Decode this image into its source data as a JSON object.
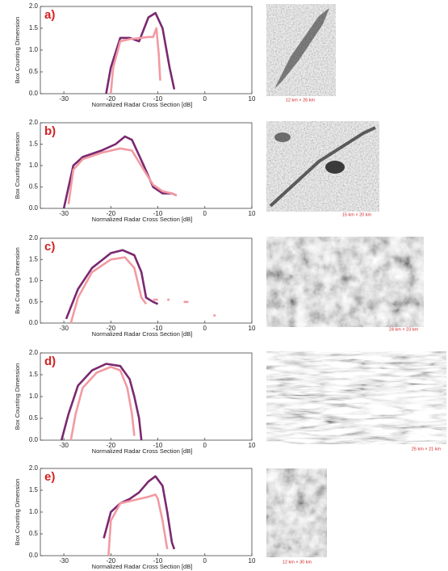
{
  "chart_data": [
    {
      "type": "line",
      "panel_label": "a)",
      "xlabel": "Normalized Radar Cross Section [dB]",
      "ylabel": "Box Counting Dimension",
      "image_caption": "12 km × 26 km",
      "xlim": [
        -35,
        10
      ],
      "ylim": [
        0,
        2
      ],
      "xticks": [
        -30,
        -20,
        -10,
        0,
        10
      ],
      "yticks": [
        {
          "value": 0,
          "label": "0.0"
        },
        0.5,
        {
          "value": 1,
          "label": "1.0"
        },
        1.5,
        {
          "value": 2,
          "label": "2.0"
        }
      ],
      "series": [
        {
          "color": "#7a2870",
          "x": [
            -21,
            -20,
            -18,
            -16,
            -14,
            -12,
            -10.5,
            -9,
            -7.5,
            -6.5
          ],
          "values": [
            0,
            0.6,
            1.28,
            1.28,
            1.2,
            1.75,
            1.85,
            1.5,
            0.6,
            0.1
          ]
        },
        {
          "color": "#f29aa2",
          "x": [
            -20,
            -19.5,
            -18,
            -16,
            -12,
            -11,
            -10.3,
            -9.8,
            -9.5
          ],
          "values": [
            0,
            0.6,
            1.2,
            1.25,
            1.3,
            1.3,
            1.5,
            0.9,
            0.3
          ]
        }
      ]
    },
    {
      "type": "line",
      "panel_label": "b)",
      "xlabel": "Normalized Radar Cross Section [dB]",
      "ylabel": "Box Counting Dimension",
      "image_caption": "15 km × 20 km",
      "xlim": [
        -35,
        10
      ],
      "ylim": [
        0,
        2
      ],
      "xticks": [
        -30,
        -20,
        -10,
        0,
        10
      ],
      "yticks": [
        {
          "value": 0,
          "label": "0.0"
        },
        0.5,
        {
          "value": 1,
          "label": "1.0"
        },
        1.5,
        {
          "value": 2,
          "label": "2.0"
        }
      ],
      "series": [
        {
          "color": "#7a2870",
          "x": [
            -30,
            -28,
            -26,
            -22,
            -19,
            -17,
            -15.5,
            -13,
            -11,
            -9,
            -7,
            -6
          ],
          "values": [
            0,
            1.0,
            1.2,
            1.35,
            1.5,
            1.68,
            1.6,
            1.0,
            0.5,
            0.35,
            0.35,
            0.3
          ]
        },
        {
          "color": "#f29aa2",
          "x": [
            -29,
            -28,
            -26,
            -22,
            -18,
            -15.5,
            -13,
            -11,
            -9,
            -7,
            -6
          ],
          "values": [
            0.1,
            0.9,
            1.15,
            1.3,
            1.4,
            1.35,
            0.9,
            0.55,
            0.4,
            0.35,
            0.3
          ]
        }
      ]
    },
    {
      "type": "line",
      "panel_label": "c)",
      "xlabel": "Normalized Radar Cross Section [dB]",
      "ylabel": "Box Counting Dimension",
      "image_caption": "24 km × 23 km",
      "xlim": [
        -35,
        10
      ],
      "ylim": [
        0,
        2
      ],
      "xticks": [
        -30,
        -20,
        -10,
        0,
        10
      ],
      "yticks": [
        {
          "value": 0,
          "label": "0.0"
        },
        0.5,
        {
          "value": 1,
          "label": "1.0"
        },
        1.5,
        {
          "value": 2,
          "label": "2.0"
        }
      ],
      "series": [
        {
          "color": "#7a2870",
          "x": [
            -29.5,
            -27,
            -24,
            -20,
            -17.5,
            -15,
            -13.5,
            -12.5,
            -11,
            -10
          ],
          "values": [
            0.1,
            0.8,
            1.3,
            1.65,
            1.72,
            1.6,
            1.2,
            0.6,
            0.5,
            0.45
          ]
        },
        {
          "color": "#f29aa2",
          "x": [
            -28.5,
            -27,
            -24,
            -20,
            -17,
            -15,
            -13.5,
            -12.5,
            -12,
            -11,
            -10,
            -9,
            -8,
            -7.5,
            -6,
            -4.5,
            -3.5,
            0,
            1.8,
            2.3
          ],
          "values": [
            0,
            0.6,
            1.2,
            1.5,
            1.55,
            1.3,
            0.6,
            0.45,
            null,
            0.55,
            0.55,
            null,
            0.55,
            0.55,
            null,
            0.5,
            0.5,
            null,
            0.18,
            0.18
          ]
        }
      ]
    },
    {
      "type": "line",
      "panel_label": "d)",
      "xlabel": "Normalized Radar Cross Section [dB]",
      "ylabel": "Box Counting Dimension",
      "image_caption": "25 km × 21 km",
      "xlim": [
        -35,
        10
      ],
      "ylim": [
        0,
        2
      ],
      "xticks": [
        -30,
        -20,
        -10,
        0,
        10
      ],
      "yticks": [
        {
          "value": 0,
          "label": "0.0"
        },
        0.5,
        {
          "value": 1,
          "label": "1.0"
        },
        1.5,
        {
          "value": 2,
          "label": "2.0"
        }
      ],
      "series": [
        {
          "color": "#7a2870",
          "x": [
            -30.5,
            -29,
            -27,
            -24,
            -21,
            -18,
            -16,
            -15,
            -14,
            -13.5
          ],
          "values": [
            0,
            0.6,
            1.25,
            1.6,
            1.75,
            1.7,
            1.4,
            1.0,
            0.5,
            0
          ]
        },
        {
          "color": "#f29aa2",
          "x": [
            -28.5,
            -27.5,
            -26,
            -23,
            -20,
            -18,
            -16.5,
            -15.5,
            -15
          ],
          "values": [
            0,
            0.6,
            1.2,
            1.55,
            1.68,
            1.6,
            1.2,
            0.6,
            0.1
          ]
        }
      ]
    },
    {
      "type": "line",
      "panel_label": "e)",
      "xlabel": "Normalized Radar Cross Section [dB]",
      "ylabel": "Box Counting Dimension",
      "image_caption": "12 km × 30 km",
      "xlim": [
        -35,
        10
      ],
      "ylim": [
        0,
        2
      ],
      "xticks": [
        -30,
        -20,
        -10,
        0,
        10
      ],
      "yticks": [
        {
          "value": 0,
          "label": "0.0"
        },
        0.5,
        {
          "value": 1,
          "label": "1.0"
        },
        1.5,
        {
          "value": 2,
          "label": "2.0"
        }
      ],
      "series": [
        {
          "color": "#7a2870",
          "x": [
            -21.5,
            -20,
            -18,
            -16,
            -14,
            -12,
            -10.5,
            -9,
            -8,
            -7,
            -6.5
          ],
          "values": [
            0.4,
            1.0,
            1.2,
            1.3,
            1.45,
            1.7,
            1.82,
            1.6,
            1.0,
            0.3,
            0.15
          ]
        },
        {
          "color": "#f29aa2",
          "x": [
            -20.5,
            -20,
            -18,
            -16,
            -12,
            -10.5,
            -10,
            -9,
            -8
          ],
          "values": [
            0,
            0.8,
            1.2,
            1.25,
            1.35,
            1.4,
            1.3,
            0.8,
            0.15
          ]
        }
      ]
    }
  ]
}
